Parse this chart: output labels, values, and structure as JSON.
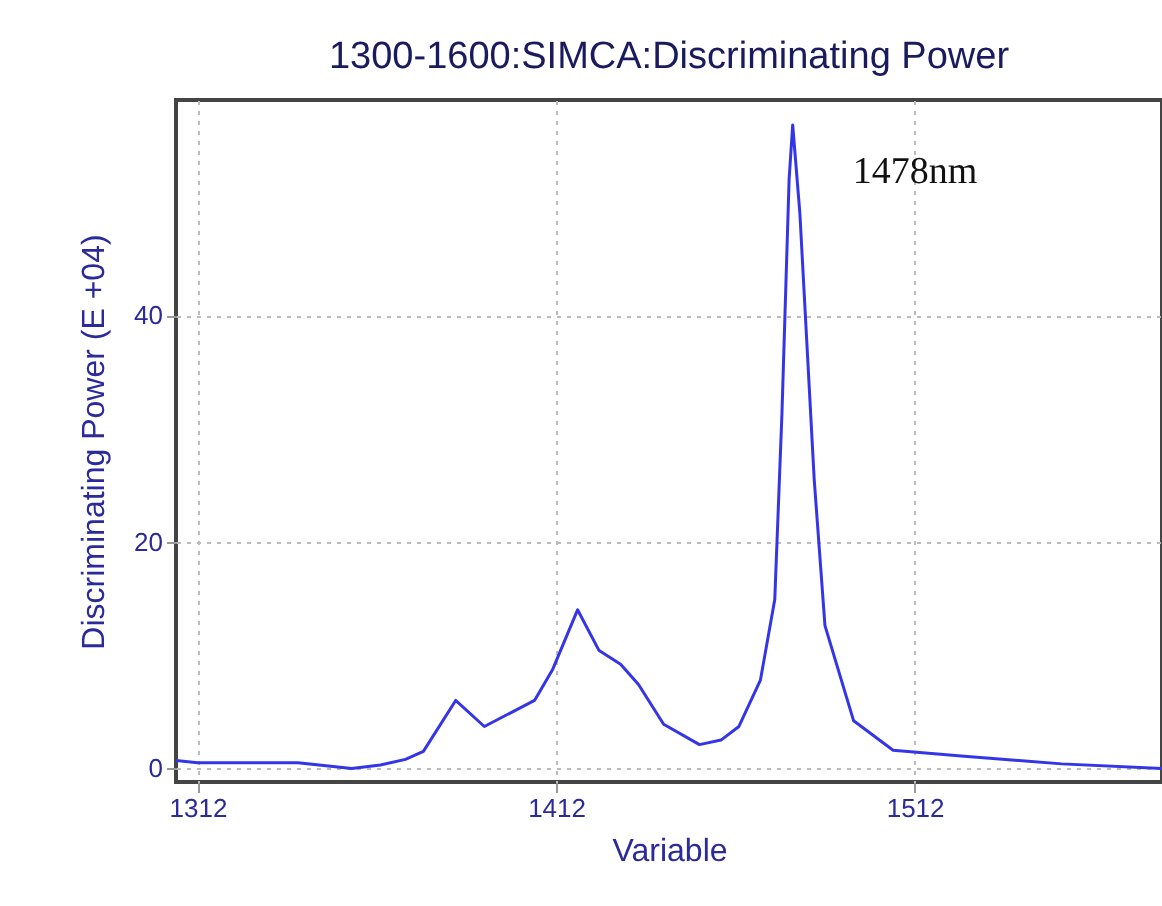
{
  "chart_data": {
    "type": "line",
    "title": "1300-1600:SIMCA:Discriminating Power",
    "xlabel": "Variable",
    "ylabel": "Discriminating Power (E +04)",
    "x": [
      1306,
      1312,
      1340,
      1355,
      1363,
      1370,
      1375,
      1384,
      1392,
      1406,
      1411,
      1418,
      1424,
      1430,
      1435,
      1442,
      1452,
      1458,
      1463,
      1469,
      1473,
      1475,
      1477,
      1478,
      1480,
      1484,
      1487,
      1495,
      1506,
      1525,
      1553,
      1581
    ],
    "series": [
      {
        "color": "#3535e8",
        "values": [
          0.7,
          0.5,
          0.5,
          0,
          0.3,
          0.8,
          1.5,
          6.0,
          3.7,
          6.0,
          8.7,
          14.0,
          10.4,
          9.2,
          7.4,
          3.9,
          2.1,
          2.5,
          3.7,
          7.8,
          14.9,
          31.3,
          52,
          56.8,
          49,
          25.5,
          12.6,
          4.2,
          1.6,
          1.1,
          0.4,
          0
        ]
      }
    ],
    "xlim": [
      1306,
      1581
    ],
    "ylim": [
      -1.2,
      59
    ],
    "xticks": [
      1312,
      1412,
      1512
    ],
    "yticks": [
      0,
      20,
      40
    ],
    "grid": true,
    "line_style": "solid",
    "annotations": [
      {
        "text": "1478nm",
        "x": 1478,
        "y": 56.8
      }
    ]
  }
}
